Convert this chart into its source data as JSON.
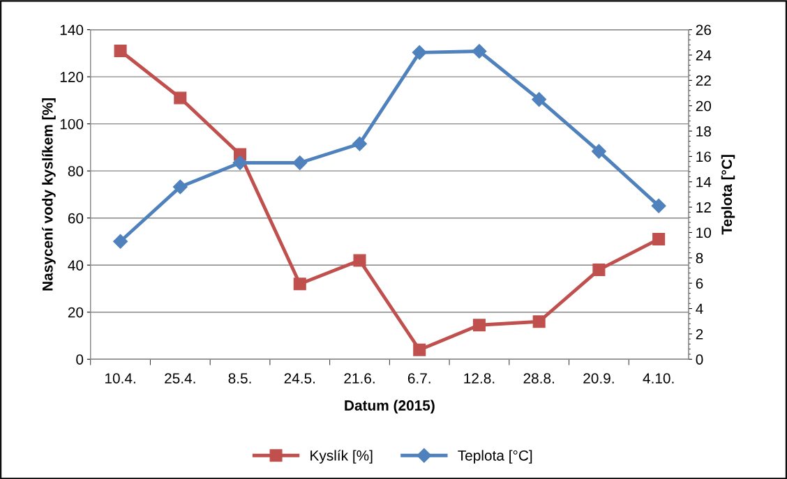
{
  "chart_data": {
    "type": "line",
    "xlabel": "Datum (2015)",
    "ylabel": "Nasycení vody kyslíkem [%]",
    "y2label": "Teplota [°C]",
    "categories": [
      "10.4.",
      "25.4.",
      "8.5.",
      "24.5.",
      "21.6.",
      "6.7.",
      "12.8.",
      "28.8.",
      "20.9.",
      "4.10."
    ],
    "series": [
      {
        "name": "Kyslík [%]",
        "color": "#c0504d",
        "marker": "square",
        "values": [
          131,
          111,
          87,
          32,
          42,
          4,
          14.5,
          16,
          38,
          51
        ]
      },
      {
        "name": "Teplota [°C]",
        "color": "#4f81bd",
        "marker": "diamond",
        "axis": "y2",
        "values": [
          9.3,
          13.6,
          15.5,
          15.5,
          17.0,
          24.2,
          24.3,
          20.5,
          16.4,
          12.1
        ]
      }
    ],
    "ylim": [
      0,
      140
    ],
    "yticks": [
      0,
      20,
      40,
      60,
      80,
      100,
      120,
      140
    ],
    "y2lim": [
      0,
      26
    ],
    "y2ticks": [
      0,
      2,
      4,
      6,
      8,
      10,
      12,
      14,
      16,
      18,
      20,
      22,
      24,
      26
    ],
    "grid": "y",
    "legend": "bottom"
  }
}
